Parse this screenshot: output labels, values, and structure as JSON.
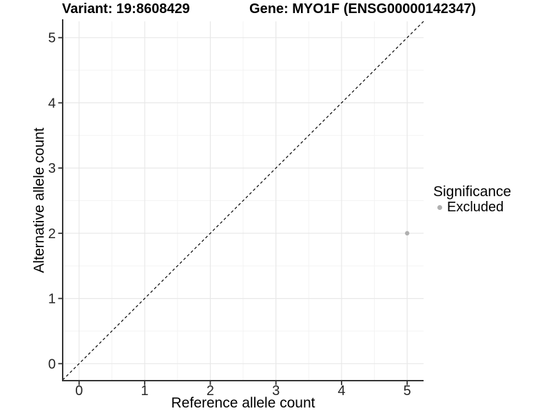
{
  "chart_data": {
    "type": "scatter",
    "title_left": "Variant: 19:8608429",
    "title_right": "Gene: MYO1F (ENSG00000142347)",
    "xlabel": "Reference allele count",
    "ylabel": "Alternative allele count",
    "xlim": [
      -0.25,
      5.25
    ],
    "ylim": [
      -0.25,
      5.25
    ],
    "xticks": [
      0,
      1,
      2,
      3,
      4,
      5
    ],
    "yticks": [
      0,
      1,
      2,
      3,
      4,
      5
    ],
    "x_minor_ticks": [
      0.5,
      1.5,
      2.5,
      3.5,
      4.5
    ],
    "y_minor_ticks": [
      0.5,
      1.5,
      2.5,
      3.5,
      4.5
    ],
    "grid": "on",
    "identity_line": {
      "style": "dashed",
      "from": [
        -0.25,
        -0.25
      ],
      "to": [
        5.25,
        5.25
      ],
      "color": "#000000"
    },
    "series": [
      {
        "name": "Excluded",
        "color": "#b0b0b0",
        "points": [
          {
            "x": 5,
            "y": 2
          }
        ]
      }
    ],
    "legend": {
      "title": "Significance",
      "position": "right",
      "entries": [
        {
          "label": "Excluded",
          "color": "#b0b0b0",
          "marker": "circle"
        }
      ]
    },
    "colors": {
      "background": "#ffffff",
      "grid_major": "#e8e8e8",
      "grid_minor": "#f3f3f3",
      "axis_line": "#333333",
      "tick_mark": "#333333",
      "tick_label": "#262626",
      "point": "#b0b0b0"
    }
  }
}
